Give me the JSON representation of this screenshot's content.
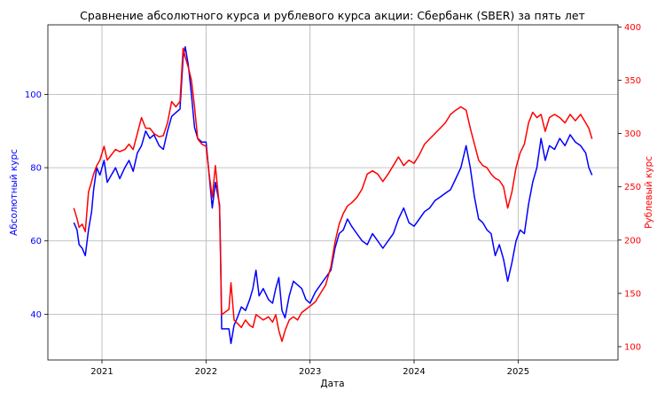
{
  "chart_data": {
    "type": "line",
    "title": "Сравнение абсолютного курса и рублевого курса акции: Сбербанк (SBER) за пять лет",
    "xlabel": "Дата",
    "y_left_label": "Абсолютный курс",
    "y_right_label": "Рублевый курс",
    "x_ticks": [
      "2021",
      "2022",
      "2023",
      "2024",
      "2025"
    ],
    "xlim": [
      2020.48,
      2025.96
    ],
    "y_left_ticks": [
      40,
      60,
      80,
      100
    ],
    "y_left_lim": [
      27.5,
      119.0
    ],
    "y_right_ticks": [
      100,
      150,
      200,
      250,
      300,
      350,
      400
    ],
    "y_right_lim": [
      87.5,
      402.0
    ],
    "grid": true,
    "colors": {
      "left_axis": "#0000ff",
      "right_axis": "#ff0000"
    },
    "series": [
      {
        "axis": "left",
        "color": "#0000ff",
        "points": [
          [
            2020.73,
            65
          ],
          [
            2020.76,
            63
          ],
          [
            2020.78,
            59
          ],
          [
            2020.81,
            58
          ],
          [
            2020.84,
            56
          ],
          [
            2020.87,
            63
          ],
          [
            2020.9,
            68
          ],
          [
            2020.92,
            74
          ],
          [
            2020.95,
            80
          ],
          [
            2020.98,
            78
          ],
          [
            2021.02,
            82
          ],
          [
            2021.05,
            76
          ],
          [
            2021.09,
            78
          ],
          [
            2021.13,
            80
          ],
          [
            2021.17,
            77
          ],
          [
            2021.22,
            80
          ],
          [
            2021.26,
            82
          ],
          [
            2021.3,
            79
          ],
          [
            2021.34,
            84
          ],
          [
            2021.38,
            86
          ],
          [
            2021.42,
            90
          ],
          [
            2021.46,
            88
          ],
          [
            2021.5,
            89
          ],
          [
            2021.55,
            86
          ],
          [
            2021.59,
            85
          ],
          [
            2021.63,
            90
          ],
          [
            2021.67,
            94
          ],
          [
            2021.71,
            95
          ],
          [
            2021.75,
            96
          ],
          [
            2021.78,
            110
          ],
          [
            2021.8,
            113
          ],
          [
            2021.83,
            108
          ],
          [
            2021.86,
            100
          ],
          [
            2021.89,
            91
          ],
          [
            2021.92,
            88
          ],
          [
            2021.96,
            87
          ],
          [
            2022.0,
            87
          ],
          [
            2022.03,
            78
          ],
          [
            2022.06,
            69
          ],
          [
            2022.09,
            76
          ],
          [
            2022.13,
            70
          ],
          [
            2022.14,
            56
          ],
          [
            2022.15,
            36
          ],
          [
            2022.22,
            36
          ],
          [
            2022.24,
            32
          ],
          [
            2022.27,
            37
          ],
          [
            2022.3,
            39
          ],
          [
            2022.34,
            42
          ],
          [
            2022.38,
            41
          ],
          [
            2022.42,
            44
          ],
          [
            2022.45,
            47
          ],
          [
            2022.48,
            52
          ],
          [
            2022.51,
            45
          ],
          [
            2022.55,
            47
          ],
          [
            2022.6,
            44
          ],
          [
            2022.64,
            43
          ],
          [
            2022.67,
            47
          ],
          [
            2022.7,
            50
          ],
          [
            2022.73,
            41
          ],
          [
            2022.76,
            39
          ],
          [
            2022.8,
            45
          ],
          [
            2022.84,
            49
          ],
          [
            2022.88,
            48
          ],
          [
            2022.92,
            47
          ],
          [
            2022.96,
            44
          ],
          [
            2023.0,
            43
          ],
          [
            2023.05,
            46
          ],
          [
            2023.1,
            48
          ],
          [
            2023.15,
            50
          ],
          [
            2023.2,
            52
          ],
          [
            2023.24,
            58
          ],
          [
            2023.28,
            62
          ],
          [
            2023.32,
            63
          ],
          [
            2023.36,
            66
          ],
          [
            2023.4,
            64
          ],
          [
            2023.45,
            62
          ],
          [
            2023.5,
            60
          ],
          [
            2023.55,
            59
          ],
          [
            2023.6,
            62
          ],
          [
            2023.65,
            60
          ],
          [
            2023.7,
            58
          ],
          [
            2023.75,
            60
          ],
          [
            2023.8,
            62
          ],
          [
            2023.85,
            66
          ],
          [
            2023.9,
            69
          ],
          [
            2023.95,
            65
          ],
          [
            2024.0,
            64
          ],
          [
            2024.05,
            66
          ],
          [
            2024.1,
            68
          ],
          [
            2024.15,
            69
          ],
          [
            2024.2,
            71
          ],
          [
            2024.25,
            72
          ],
          [
            2024.3,
            73
          ],
          [
            2024.35,
            74
          ],
          [
            2024.4,
            77
          ],
          [
            2024.45,
            80
          ],
          [
            2024.5,
            86
          ],
          [
            2024.54,
            80
          ],
          [
            2024.58,
            72
          ],
          [
            2024.62,
            66
          ],
          [
            2024.66,
            65
          ],
          [
            2024.7,
            63
          ],
          [
            2024.74,
            62
          ],
          [
            2024.78,
            56
          ],
          [
            2024.82,
            59
          ],
          [
            2024.86,
            55
          ],
          [
            2024.9,
            49
          ],
          [
            2024.94,
            54
          ],
          [
            2024.98,
            60
          ],
          [
            2025.02,
            63
          ],
          [
            2025.06,
            62
          ],
          [
            2025.1,
            70
          ],
          [
            2025.14,
            76
          ],
          [
            2025.18,
            80
          ],
          [
            2025.22,
            88
          ],
          [
            2025.26,
            82
          ],
          [
            2025.3,
            86
          ],
          [
            2025.35,
            85
          ],
          [
            2025.4,
            88
          ],
          [
            2025.45,
            86
          ],
          [
            2025.5,
            89
          ],
          [
            2025.55,
            87
          ],
          [
            2025.6,
            86
          ],
          [
            2025.65,
            84
          ],
          [
            2025.68,
            80
          ],
          [
            2025.71,
            78
          ]
        ]
      },
      {
        "axis": "right",
        "color": "#ff0000",
        "points": [
          [
            2020.73,
            230
          ],
          [
            2020.76,
            220
          ],
          [
            2020.78,
            212
          ],
          [
            2020.81,
            215
          ],
          [
            2020.84,
            208
          ],
          [
            2020.87,
            245
          ],
          [
            2020.9,
            255
          ],
          [
            2020.92,
            262
          ],
          [
            2020.95,
            270
          ],
          [
            2020.98,
            275
          ],
          [
            2021.02,
            288
          ],
          [
            2021.05,
            275
          ],
          [
            2021.09,
            280
          ],
          [
            2021.13,
            285
          ],
          [
            2021.17,
            283
          ],
          [
            2021.22,
            285
          ],
          [
            2021.26,
            290
          ],
          [
            2021.3,
            285
          ],
          [
            2021.34,
            300
          ],
          [
            2021.38,
            315
          ],
          [
            2021.42,
            305
          ],
          [
            2021.46,
            305
          ],
          [
            2021.5,
            300
          ],
          [
            2021.55,
            297
          ],
          [
            2021.59,
            298
          ],
          [
            2021.63,
            310
          ],
          [
            2021.67,
            330
          ],
          [
            2021.71,
            325
          ],
          [
            2021.75,
            330
          ],
          [
            2021.78,
            380
          ],
          [
            2021.8,
            372
          ],
          [
            2021.83,
            362
          ],
          [
            2021.86,
            350
          ],
          [
            2021.89,
            325
          ],
          [
            2021.92,
            295
          ],
          [
            2021.96,
            290
          ],
          [
            2022.0,
            288
          ],
          [
            2022.03,
            262
          ],
          [
            2022.06,
            240
          ],
          [
            2022.09,
            270
          ],
          [
            2022.13,
            230
          ],
          [
            2022.14,
            180
          ],
          [
            2022.15,
            130
          ],
          [
            2022.22,
            135
          ],
          [
            2022.24,
            160
          ],
          [
            2022.27,
            125
          ],
          [
            2022.3,
            122
          ],
          [
            2022.34,
            118
          ],
          [
            2022.38,
            125
          ],
          [
            2022.42,
            120
          ],
          [
            2022.45,
            118
          ],
          [
            2022.48,
            130
          ],
          [
            2022.51,
            128
          ],
          [
            2022.55,
            125
          ],
          [
            2022.6,
            128
          ],
          [
            2022.64,
            123
          ],
          [
            2022.67,
            130
          ],
          [
            2022.7,
            115
          ],
          [
            2022.73,
            105
          ],
          [
            2022.76,
            115
          ],
          [
            2022.8,
            125
          ],
          [
            2022.84,
            128
          ],
          [
            2022.88,
            125
          ],
          [
            2022.92,
            132
          ],
          [
            2022.96,
            135
          ],
          [
            2023.0,
            138
          ],
          [
            2023.05,
            142
          ],
          [
            2023.1,
            150
          ],
          [
            2023.15,
            158
          ],
          [
            2023.2,
            175
          ],
          [
            2023.24,
            198
          ],
          [
            2023.28,
            215
          ],
          [
            2023.32,
            225
          ],
          [
            2023.36,
            232
          ],
          [
            2023.4,
            235
          ],
          [
            2023.45,
            240
          ],
          [
            2023.5,
            248
          ],
          [
            2023.55,
            262
          ],
          [
            2023.6,
            265
          ],
          [
            2023.65,
            262
          ],
          [
            2023.7,
            255
          ],
          [
            2023.75,
            262
          ],
          [
            2023.8,
            270
          ],
          [
            2023.85,
            278
          ],
          [
            2023.9,
            270
          ],
          [
            2023.95,
            275
          ],
          [
            2024.0,
            272
          ],
          [
            2024.05,
            280
          ],
          [
            2024.1,
            290
          ],
          [
            2024.15,
            295
          ],
          [
            2024.2,
            300
          ],
          [
            2024.25,
            305
          ],
          [
            2024.3,
            310
          ],
          [
            2024.35,
            318
          ],
          [
            2024.4,
            322
          ],
          [
            2024.45,
            325
          ],
          [
            2024.5,
            322
          ],
          [
            2024.54,
            305
          ],
          [
            2024.58,
            290
          ],
          [
            2024.62,
            275
          ],
          [
            2024.66,
            270
          ],
          [
            2024.7,
            268
          ],
          [
            2024.74,
            262
          ],
          [
            2024.78,
            258
          ],
          [
            2024.82,
            256
          ],
          [
            2024.86,
            250
          ],
          [
            2024.9,
            230
          ],
          [
            2024.94,
            245
          ],
          [
            2024.98,
            268
          ],
          [
            2025.02,
            282
          ],
          [
            2025.06,
            290
          ],
          [
            2025.1,
            310
          ],
          [
            2025.14,
            320
          ],
          [
            2025.18,
            315
          ],
          [
            2025.22,
            318
          ],
          [
            2025.26,
            302
          ],
          [
            2025.3,
            315
          ],
          [
            2025.35,
            318
          ],
          [
            2025.4,
            315
          ],
          [
            2025.45,
            310
          ],
          [
            2025.5,
            318
          ],
          [
            2025.55,
            312
          ],
          [
            2025.6,
            318
          ],
          [
            2025.65,
            310
          ],
          [
            2025.68,
            305
          ],
          [
            2025.71,
            295
          ]
        ]
      }
    ]
  }
}
